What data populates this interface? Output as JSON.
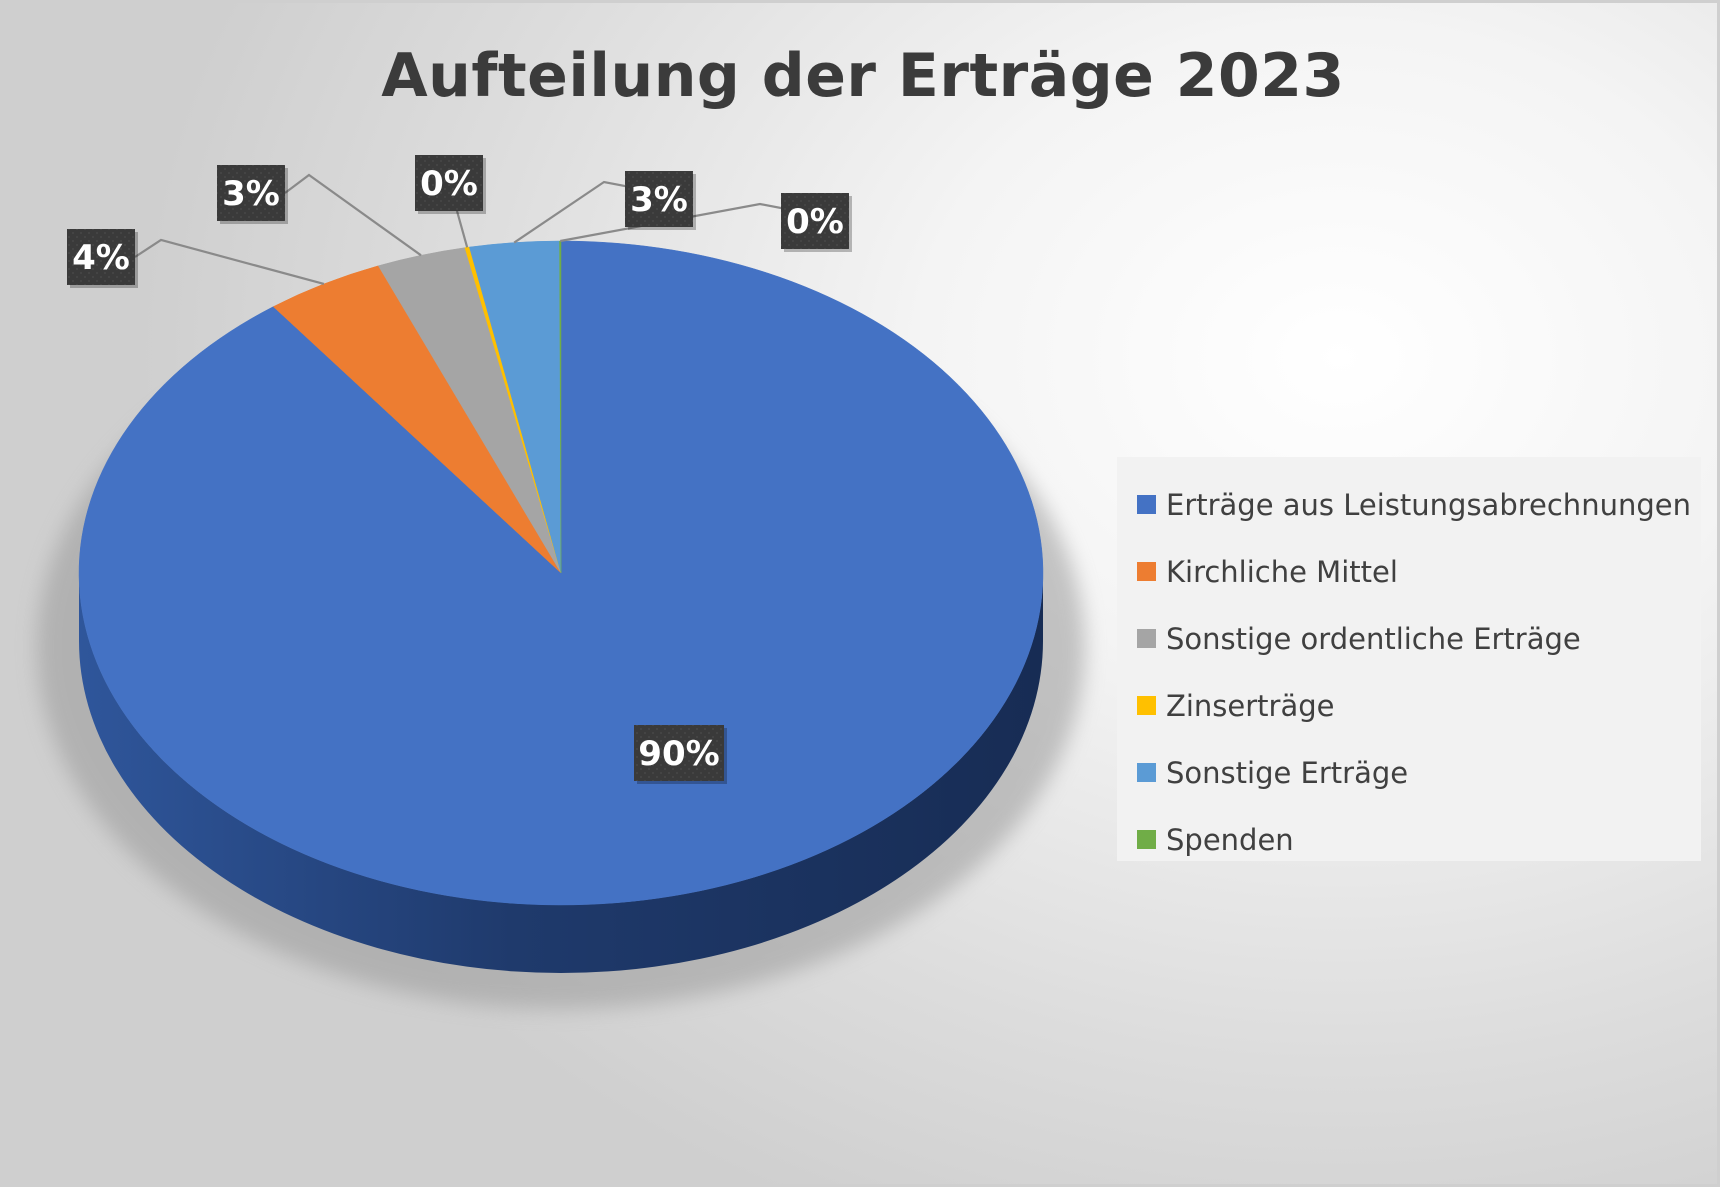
{
  "chart_data": {
    "type": "pie",
    "title": "Aufteilung der Erträge 2023",
    "categories": [
      "Erträge aus Leistungsabrechnungen",
      "Kirchliche Mittel",
      "Sonstige ordentliche Erträge",
      "Zinserträge",
      "Sonstige Erträge",
      "Spenden"
    ],
    "values": [
      90,
      4,
      3,
      0.15,
      3,
      0.05
    ],
    "labels": [
      "90%",
      "4%",
      "3%",
      "0%",
      "3%",
      "0%"
    ],
    "colors": [
      "#4472C4",
      "#ED7D31",
      "#A5A5A5",
      "#FFC000",
      "#5B9BD5",
      "#70AD47"
    ],
    "legend_position": "right"
  }
}
